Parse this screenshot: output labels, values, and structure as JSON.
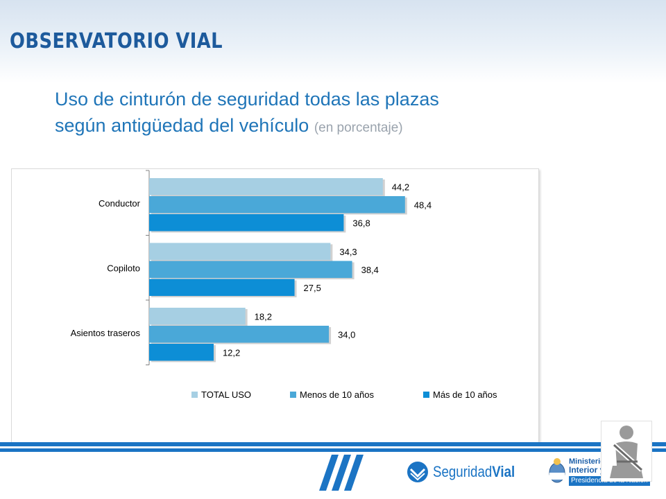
{
  "header": {
    "logo_text": "OBSERVATORIO VIAL",
    "title_line1": "Uso de cinturón de seguridad todas las plazas",
    "title_line2": "según antigüedad del vehículo",
    "title_note": "(en porcentaje)"
  },
  "chart_data": {
    "type": "bar",
    "orientation": "horizontal",
    "categories": [
      "Conductor",
      "Copiloto",
      "Asientos traseros"
    ],
    "series": [
      {
        "name": "TOTAL USO",
        "values": [
          44.2,
          34.3,
          18.2
        ],
        "labels": [
          "44,2",
          "34,3",
          "18,2"
        ],
        "color": "#a6cfe3"
      },
      {
        "name": "Menos de 10 años",
        "values": [
          48.4,
          38.4,
          34.0
        ],
        "labels": [
          "48,4",
          "38,4",
          "34,0"
        ],
        "color": "#4aa8d8"
      },
      {
        "name": "Más de 10 años",
        "values": [
          36.8,
          27.5,
          12.2
        ],
        "labels": [
          "36,8",
          "27,5",
          "12,2"
        ],
        "color": "#0d8ed6"
      }
    ],
    "legend_position": "bottom",
    "grid": false
  },
  "footer": {
    "brand_prefix": "Seguridad",
    "brand_suffix": "Vial",
    "ministry_line1": "Ministerio",
    "ministry_line2": "Interior y",
    "ministry_line3": "Presidencia de la Nación"
  },
  "colors": {
    "brand_blue": "#1b74c4",
    "title_blue": "#1f75b8",
    "logo_blue": "#1d5a9c"
  }
}
